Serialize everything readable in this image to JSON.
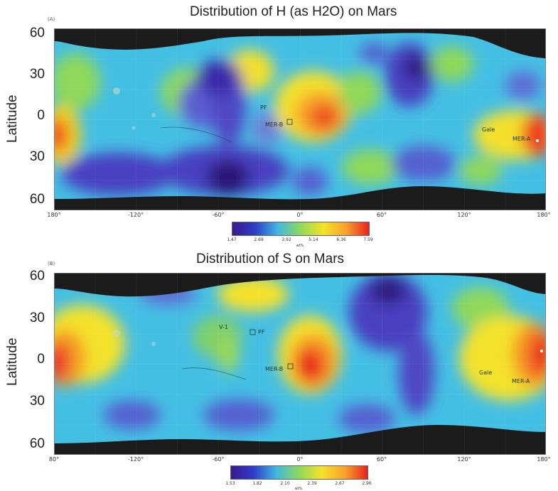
{
  "panels": [
    {
      "letter": "(A)",
      "title": "Distribution of H (as H2O) on Mars",
      "ylabel": "Latitude",
      "lat_ticks": [
        "60",
        "30",
        "0",
        "30",
        "60"
      ],
      "lon_ticks": [
        "180°",
        "-120°",
        "-60°",
        "0°",
        "60°",
        "120°",
        "180°"
      ],
      "sites": [
        "PF",
        "MER-B",
        "Gale",
        "MER-A"
      ],
      "colorbar": {
        "ticks": [
          "1.47",
          "2.69",
          "3.92",
          "5.14",
          "6.36",
          "7.59"
        ],
        "unit": "wt%"
      }
    },
    {
      "letter": "(B)",
      "title": "Distribution of S on Mars",
      "ylabel": "Latitude",
      "lat_ticks": [
        "60",
        "30",
        "0",
        "30",
        "60"
      ],
      "lon_ticks": [
        "80°",
        "-120°",
        "-60°",
        "0°",
        "60°",
        "120°",
        "180°"
      ],
      "sites": [
        "V-1",
        "PF",
        "MER-B",
        "Gale",
        "MER-A"
      ],
      "colorbar": {
        "ticks": [
          "1.53",
          "1.82",
          "2.10",
          "2.39",
          "2.67",
          "2.96"
        ],
        "unit": "wt%"
      }
    }
  ],
  "colors": {
    "low": "#3a1a8c",
    "mid": "#41b8e0",
    "high": "#e8231f",
    "polar": "#1a1a1a"
  }
}
